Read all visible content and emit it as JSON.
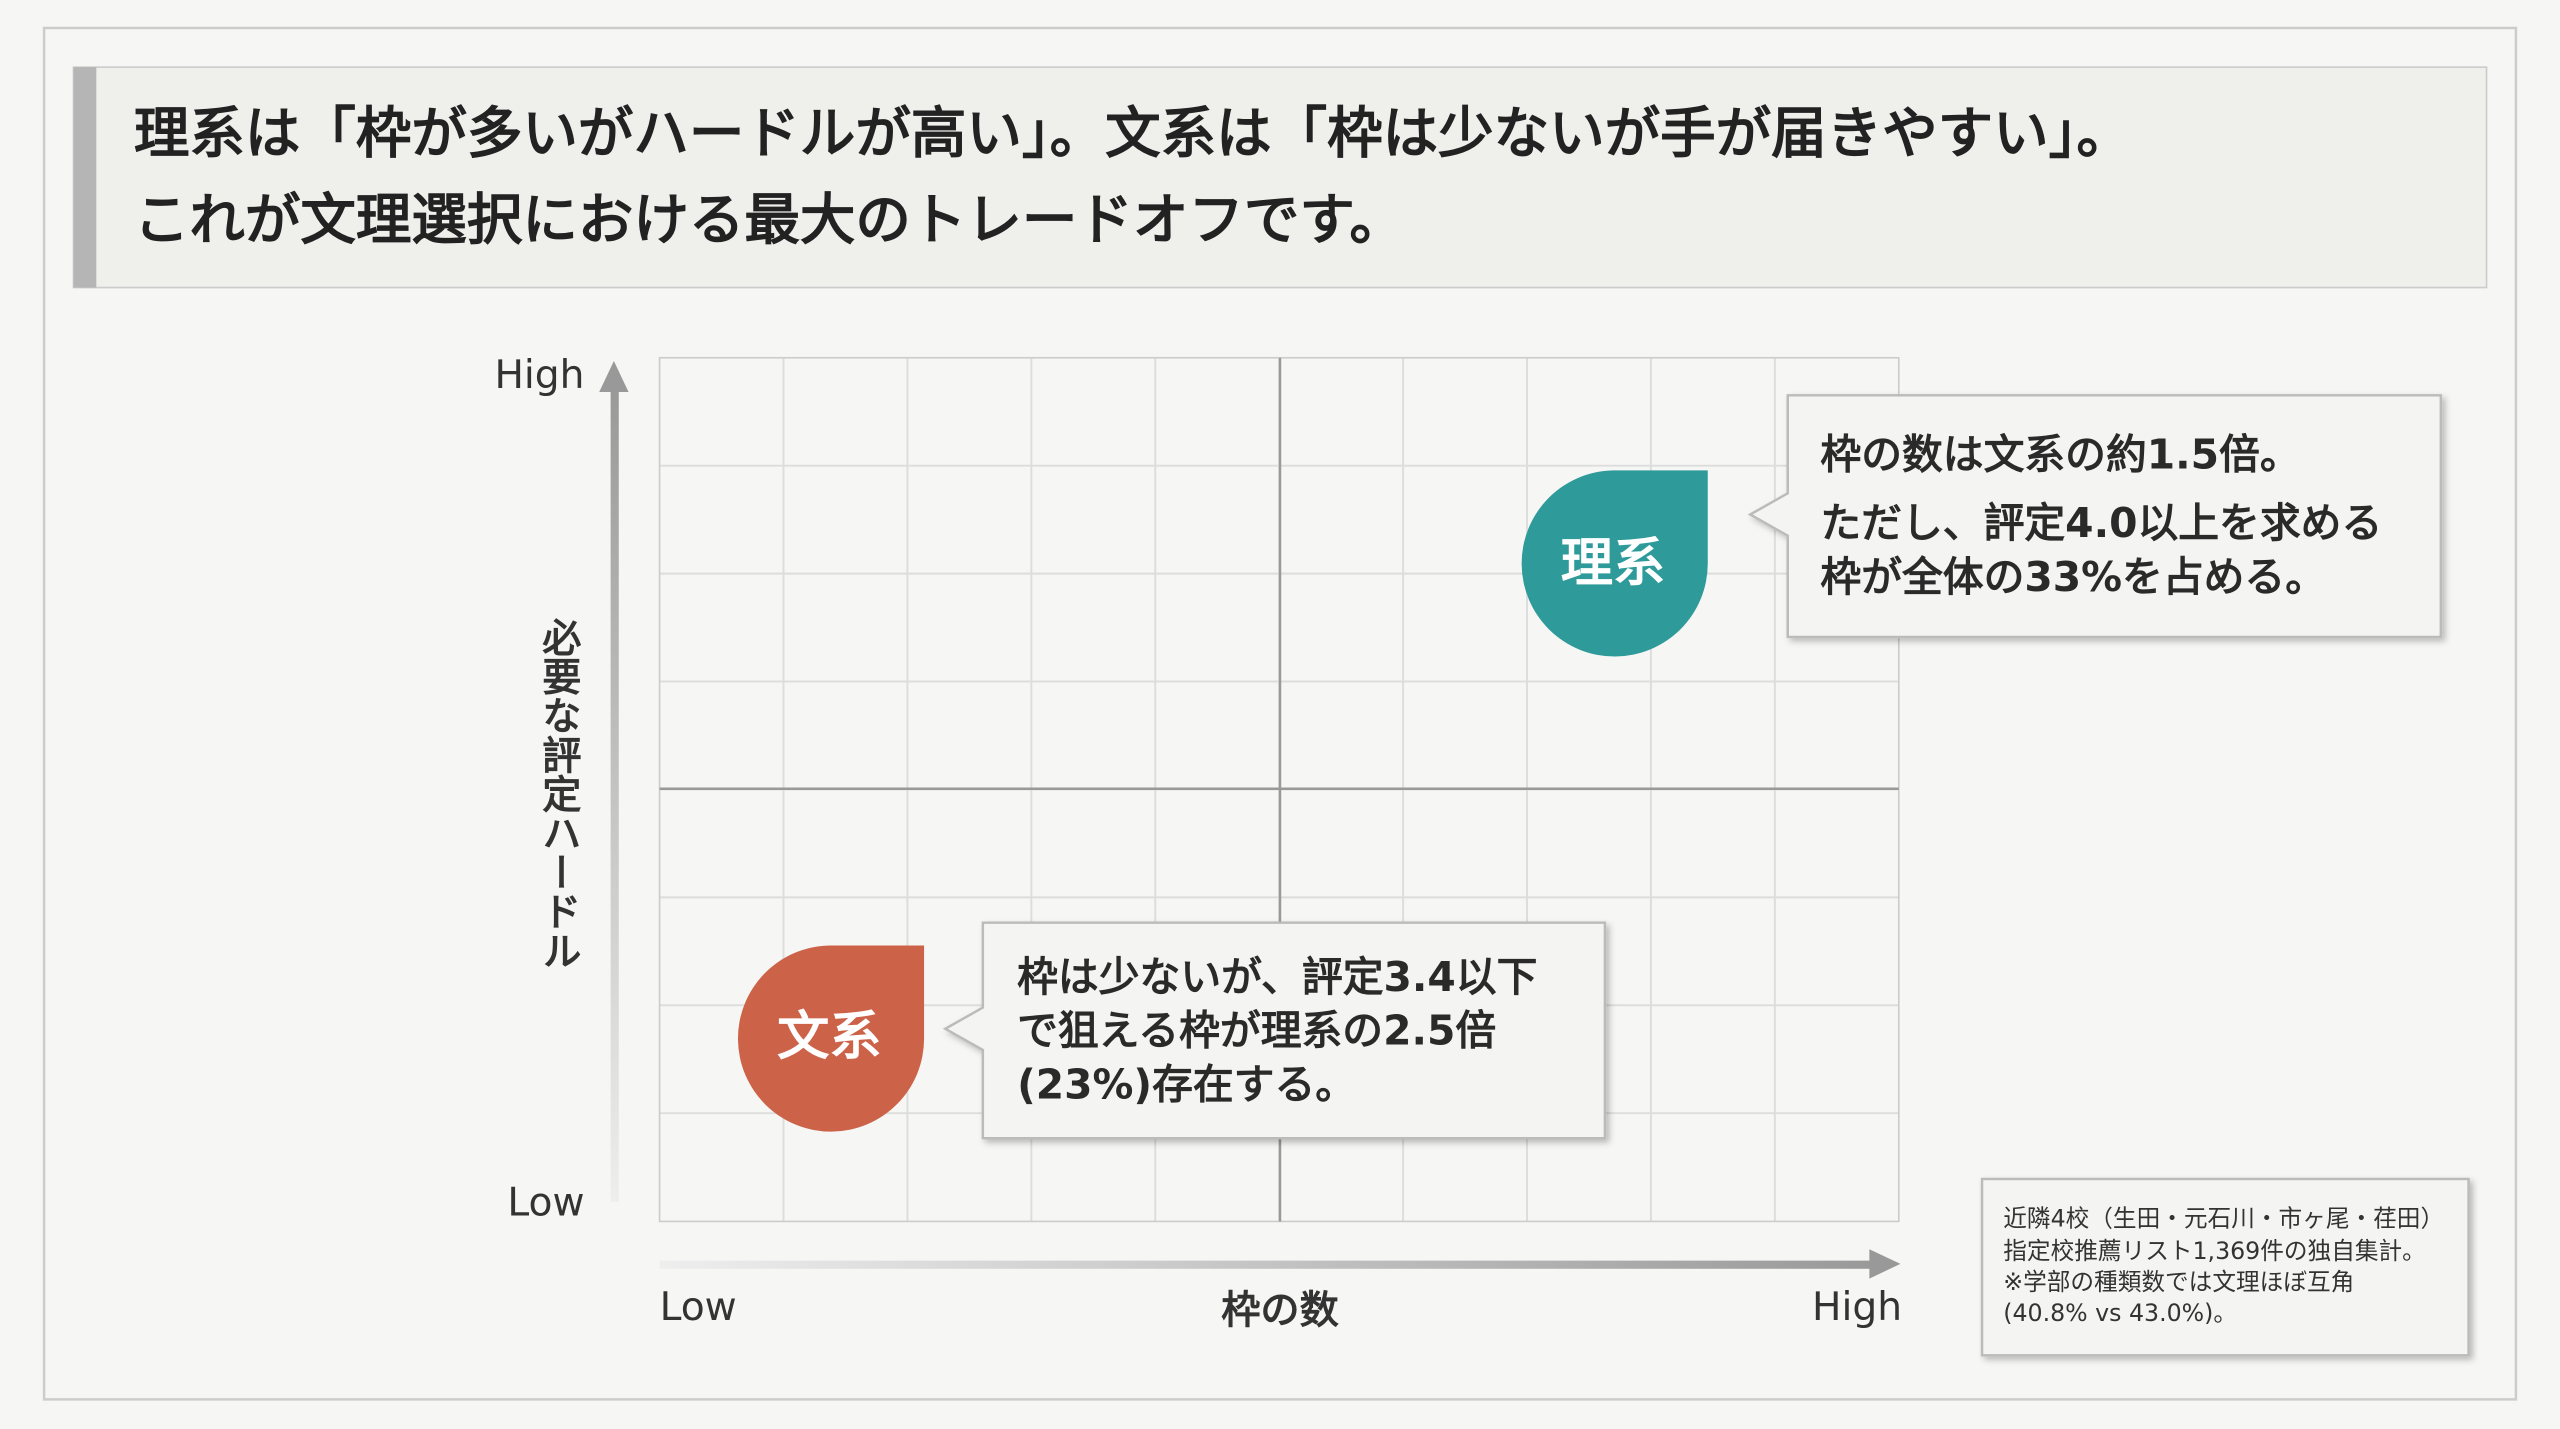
{
  "header": {
    "lines": [
      "理系は「枠が多いがハードルが高い」。文系は「枠は少ないが手が届きやすい」。",
      "これが文理選択における最大のトレードオフです。"
    ]
  },
  "y_axis": {
    "label": "必要な評定ハードル",
    "high": "High",
    "low": "Low"
  },
  "x_axis": {
    "label": "枠の数",
    "low": "Low",
    "high": "High"
  },
  "nodes": [
    {
      "label": "理系",
      "callout": [
        "枠の数は文系の約1.5倍。",
        "ただし、評定4.0以上を求める",
        "枠が全体の33%を占める。"
      ]
    },
    {
      "label": "文系",
      "callout": [
        "枠は少ないが、評定3.4以下",
        "で狙える枠が理系の2.5倍",
        "(23%)存在する。"
      ]
    }
  ],
  "note": {
    "lines": [
      "近隣4校（生田・元石川・市ヶ尾・荏田）",
      "指定校推薦リスト1,369件の独自集計。",
      "※学部の種類数では文理ほぼ互角",
      "(40.8% vs 43.0%)。"
    ]
  }
}
